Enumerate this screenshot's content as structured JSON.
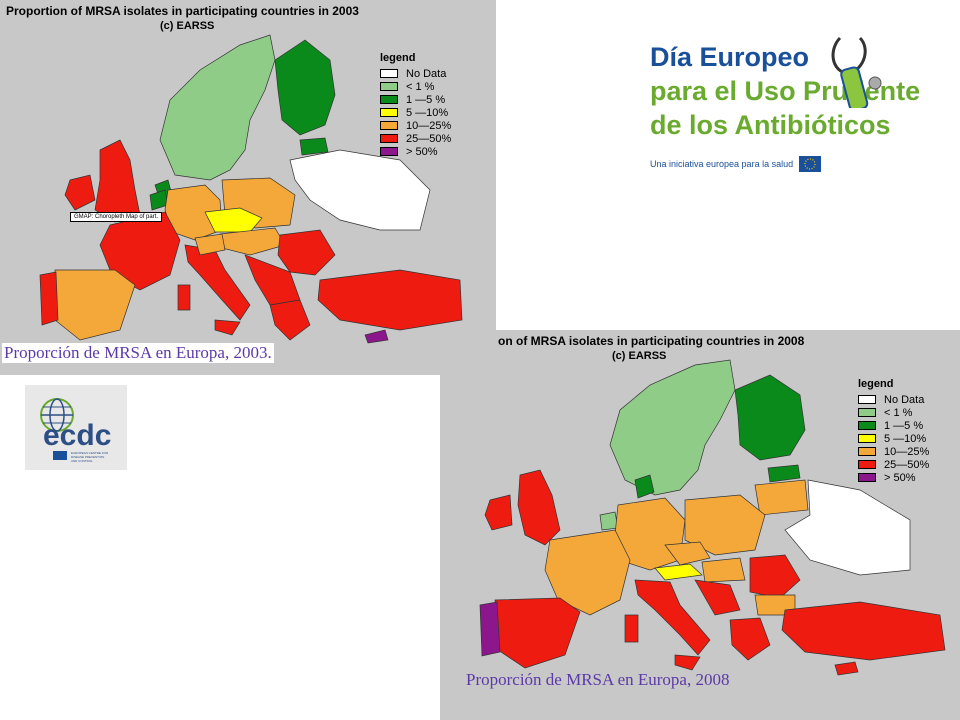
{
  "colors": {
    "no_data": "#ffffff",
    "lt1": "#8fcc88",
    "1to5": "#0a8a1a",
    "5to10": "#ffff00",
    "10to25": "#f5a83a",
    "25to50": "#ee1c10",
    "gt50": "#8c168c",
    "sea": "#c8c8c8"
  },
  "map_2003": {
    "title": "Proportion of MRSA isolates in participating countries in 2003",
    "subtitle": "(c) EARSS",
    "tooltip": "GMAP: Choropleth Map of part.",
    "caption": "Proporción de MRSA en Europa, 2003."
  },
  "map_2008": {
    "title": "on of MRSA isolates in participating countries in 2008",
    "subtitle": "(c) EARSS",
    "caption": "Proporción de MRSA en Europa, 2008"
  },
  "legend": {
    "title": "legend",
    "items": [
      {
        "label": "No Data",
        "color": "#ffffff"
      },
      {
        "label": "<  1 %",
        "color": "#8fcc88"
      },
      {
        "label": "1  —5  %",
        "color": "#0a8a1a"
      },
      {
        "label": "5  —10%",
        "color": "#ffff00"
      },
      {
        "label": "10—25%",
        "color": "#f5a83a"
      },
      {
        "label": "25—50%",
        "color": "#ee1c10"
      },
      {
        "label": ">  50%",
        "color": "#8c168c"
      }
    ]
  },
  "promo": {
    "line1": "Día Europeo",
    "line2": "para el Uso Prudente",
    "line3": "de los Antibióticos",
    "tagline": "Una iniciativa europea para la salud"
  },
  "ecdc": {
    "logo_text": "ecdc",
    "small_text": "EUROPEAN CENTRE FOR DISEASE PREVENTION AND CONTROL"
  }
}
